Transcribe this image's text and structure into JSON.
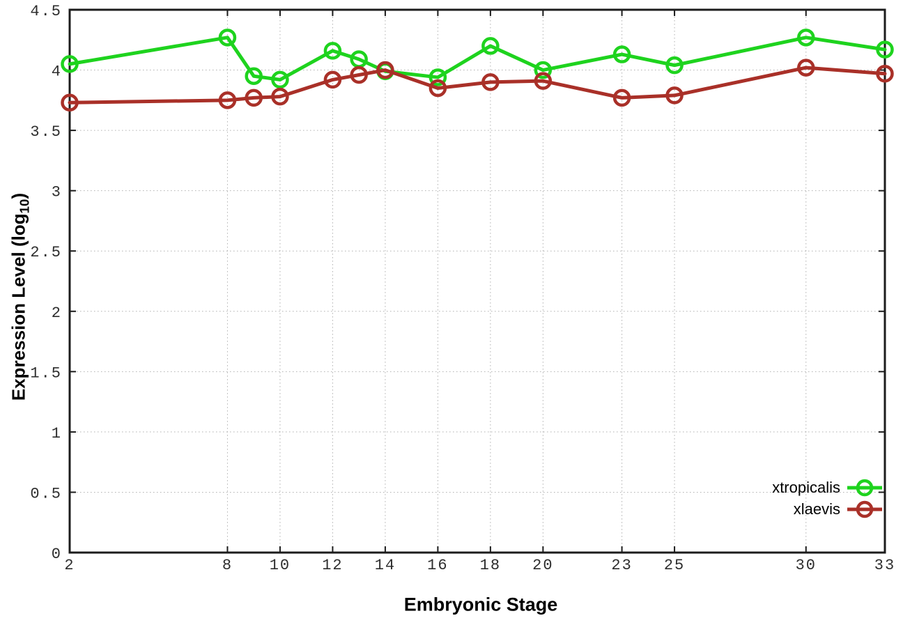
{
  "chart_data": {
    "type": "line",
    "title": "",
    "xlabel": "Embryonic Stage",
    "ylabel_main": "Expression Level (log",
    "ylabel_sub": "10",
    "ylabel_end": ")",
    "x": [
      2,
      8,
      9,
      10,
      12,
      13,
      14,
      16,
      18,
      20,
      23,
      25,
      30,
      33
    ],
    "series": [
      {
        "name": "xtropicalis",
        "color": "#1ed31e",
        "values": [
          4.05,
          4.27,
          3.95,
          3.92,
          4.16,
          4.09,
          3.99,
          3.94,
          4.2,
          4.0,
          4.13,
          4.04,
          4.27,
          4.17
        ]
      },
      {
        "name": "xlaevis",
        "color": "#a93028",
        "values": [
          3.73,
          3.75,
          3.77,
          3.78,
          3.92,
          3.96,
          4.0,
          3.85,
          3.9,
          3.91,
          3.77,
          3.79,
          4.02,
          3.97
        ]
      }
    ],
    "xlim": [
      2,
      33
    ],
    "ylim": [
      0,
      4.5
    ],
    "x_ticks": [
      2,
      8,
      10,
      12,
      14,
      16,
      18,
      20,
      23,
      25,
      30,
      33
    ],
    "x_tick_labels": [
      "2",
      "8",
      "10",
      "12",
      "14",
      "16",
      "18",
      "20",
      "23",
      "25",
      "30",
      "33"
    ],
    "y_ticks": [
      0,
      0.5,
      1,
      1.5,
      2,
      2.5,
      3,
      3.5,
      4,
      4.5
    ],
    "y_tick_labels": [
      "0",
      "0.5",
      "1",
      "1.5",
      "2",
      "2.5",
      "3",
      "3.5",
      "4",
      "4.5"
    ],
    "grid": true,
    "grid_style": "dotted",
    "legend_position": "bottom-right",
    "marker": "open-circle",
    "axis_color": "#1c1c1c",
    "grid_color": "#b0b0b0",
    "tick_label_color": "#2e2e2e",
    "background_color": "#ffffff"
  }
}
